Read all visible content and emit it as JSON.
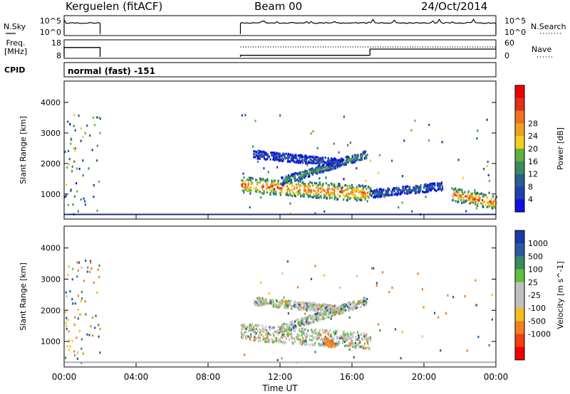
{
  "header": {
    "station": "Kerguelen (fitACF)",
    "beam": "Beam 00",
    "date": "24/Oct/2014"
  },
  "strip_labels": {
    "nsky": "N.Sky",
    "nsky_hi": "10^5",
    "nsky_lo": "10^0",
    "nsearch": "N.Search",
    "nsearch_hi": "10^5",
    "nsearch_lo": "10^0",
    "freq_line1": "Freq.",
    "freq_line2": "[MHz]",
    "freq_hi": "18",
    "freq_lo": "8",
    "nave": "Nave",
    "nave_hi": "60",
    "nave_lo": "0",
    "cpid": "CPID",
    "cpid_value": "normal (fast) -151"
  },
  "colors": {
    "power_scale": [
      "#1010e0",
      "#2040b0",
      "#2a6090",
      "#3a8a60",
      "#60b040",
      "#f0d020",
      "#f0a020",
      "#f07020",
      "#e03018",
      "#f00000"
    ],
    "velocity_scale": [
      "#1a3aa8",
      "#2a5aa0",
      "#3a8a60",
      "#60c040",
      "#c0c0c0",
      "#c0c0c0",
      "#f0c020",
      "#f08020",
      "#f04010",
      "#f00000"
    ]
  },
  "chart_data": [
    {
      "type": "line",
      "title": "N.Sky / N.Search",
      "x_label": "",
      "y_scale": "log",
      "ylim": [
        "10^0",
        "10^5"
      ],
      "segments_hours": [
        [
          0.0,
          2.0
        ],
        [
          9.8,
          24.0
        ]
      ]
    },
    {
      "type": "line",
      "title": "Freq. [MHz] / Nave",
      "freq_ylim": [
        8,
        18
      ],
      "nave_ylim": [
        0,
        60
      ],
      "freq_segments": [
        {
          "from": 0.0,
          "to": 2.0,
          "value": 14
        },
        {
          "from": 9.8,
          "to": 17.0,
          "value": 9
        },
        {
          "from": 17.0,
          "to": 24.0,
          "value": 13
        }
      ],
      "nave_segments": [
        {
          "from": 0.0,
          "to": 2.0,
          "value": 36
        },
        {
          "from": 9.8,
          "to": 24.0,
          "value": 38
        }
      ]
    },
    {
      "type": "heatmap",
      "xlabel": "Time UT",
      "ylabel": "Slant Range [km]",
      "x_ticks": [
        "00:00",
        "04:00",
        "08:00",
        "12:00",
        "16:00",
        "20:00",
        "00:00"
      ],
      "y_ticks": [
        1000,
        2000,
        3000,
        4000
      ],
      "ylim": [
        180,
        4700
      ],
      "colorbar": {
        "label": "Power [dB]",
        "ticks": [
          4,
          8,
          12,
          16,
          20,
          24,
          28
        ]
      },
      "features": [
        {
          "name": "main echo band",
          "t_start": 9.8,
          "t_end": 17.0,
          "range_start": 1300,
          "range_end": 1000,
          "level": 26
        },
        {
          "name": "ascending band",
          "t_start": 12.0,
          "t_end": 16.8,
          "range_start": 1400,
          "range_end": 2300,
          "level": 14
        },
        {
          "name": "upper arc",
          "t_start": 10.5,
          "t_end": 15.5,
          "range_start": 2300,
          "range_end": 2000,
          "level": 8
        },
        {
          "name": "late echoes",
          "t_start": 17.0,
          "t_end": 21.0,
          "range_start": 1000,
          "range_end": 1250,
          "level": 10
        },
        {
          "name": "evening echo",
          "t_start": 21.5,
          "t_end": 24.0,
          "range_start": 1000,
          "range_end": 700,
          "level": 26
        }
      ]
    },
    {
      "type": "heatmap",
      "xlabel": "Time UT",
      "ylabel": "Slant Range [km]",
      "x_ticks": [
        "00:00",
        "04:00",
        "08:00",
        "12:00",
        "16:00",
        "20:00",
        "00:00"
      ],
      "y_ticks": [
        1000,
        2000,
        3000,
        4000
      ],
      "ylim": [
        180,
        4700
      ],
      "colorbar": {
        "label": "Velocity [m s^-1]",
        "ticks": [
          "1000",
          "500",
          "100",
          "25",
          "-25",
          "-100",
          "-500",
          "-1000"
        ]
      },
      "features": [
        {
          "name": "main echo band",
          "t_start": 9.8,
          "t_end": 17.0,
          "range_start": 1300,
          "range_end": 1000,
          "level": 0
        },
        {
          "name": "ascending band",
          "t_start": 12.0,
          "t_end": 16.8,
          "range_start": 1400,
          "range_end": 2300,
          "level": 0
        },
        {
          "name": "upper arc",
          "t_start": 10.5,
          "t_end": 15.5,
          "range_start": 2300,
          "range_end": 2000,
          "level": 0
        },
        {
          "name": "orange patch",
          "t_start": 14.4,
          "t_end": 15.0,
          "range_start": 1000,
          "range_end": 900,
          "level": -300
        }
      ]
    }
  ]
}
